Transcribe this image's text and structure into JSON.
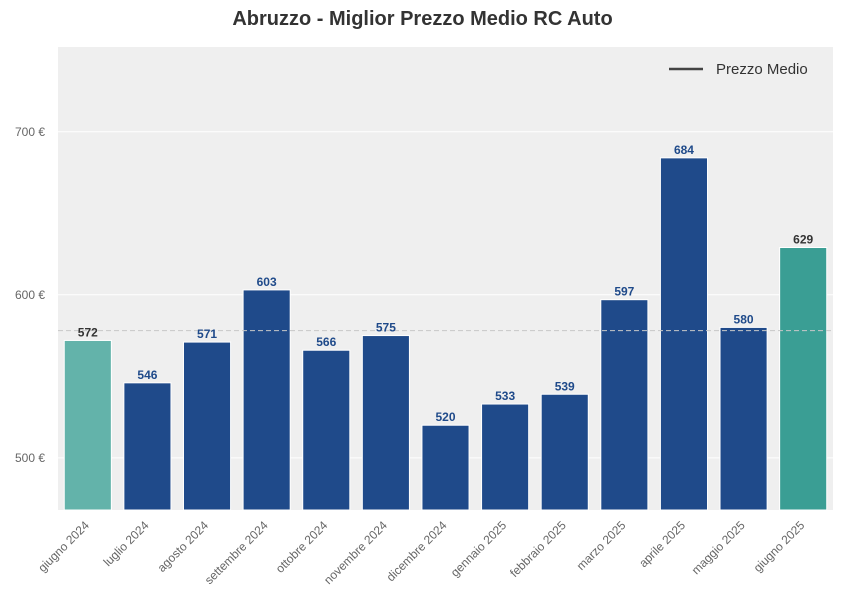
{
  "chart_data": {
    "type": "bar",
    "title": "Abruzzo - Miglior Prezzo Medio RC Auto",
    "xlabel": "",
    "ylabel": "",
    "categories": [
      "giugno 2024",
      "luglio 2024",
      "agosto 2024",
      "settembre 2024",
      "ottobre 2024",
      "novembre 2024",
      "dicembre 2024",
      "gennaio 2025",
      "febbraio 2025",
      "marzo 2025",
      "aprile 2025",
      "maggio 2025",
      "giugno 2025"
    ],
    "values": [
      572,
      546,
      571,
      603,
      566,
      575,
      520,
      533,
      539,
      597,
      684,
      580,
      629
    ],
    "value_labels": [
      "572",
      "546",
      "571",
      "603",
      "566",
      "575",
      "520",
      "533",
      "539",
      "597",
      "684",
      "580",
      "629"
    ],
    "ylim": [
      468,
      752
    ],
    "yticks": [
      500,
      600,
      700
    ],
    "ytick_labels": [
      "500 €",
      "600 €",
      "700 €"
    ],
    "reference_line": {
      "label": "Prezzo Medio",
      "value": 578,
      "style": "dashed"
    },
    "legend": {
      "entries": [
        "Prezzo Medio"
      ],
      "position": "top-right"
    },
    "grid": true,
    "colors": {
      "bar_default": "#1f4a8a",
      "bar_first": "#63b3aa",
      "bar_last": "#3a9e94",
      "label_default": "#1f4a8a",
      "label_highlight": "#333333",
      "plot_background": "#efefef",
      "reference_line": "#c8c8c8",
      "legend_line": "#444444"
    }
  }
}
